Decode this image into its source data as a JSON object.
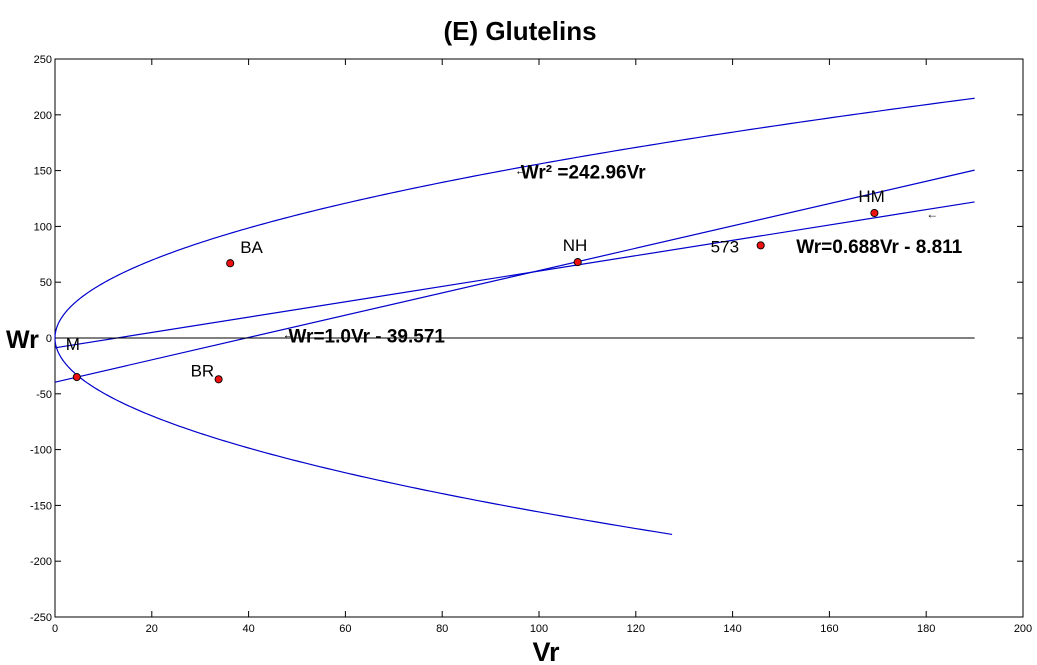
{
  "chart_data": {
    "type": "scatter",
    "title": "(E)   Glutelins",
    "xlabel": "Vr",
    "ylabel": "Wr",
    "xlim": [
      0,
      200
    ],
    "ylim": [
      -250,
      250
    ],
    "xticks": [
      "0",
      "20",
      "40",
      "60",
      "80",
      "100",
      "120",
      "140",
      "160",
      "180",
      "200"
    ],
    "yticks": [
      "250",
      "200",
      "150",
      "100",
      "50",
      "0",
      "-50",
      "-100",
      "-150",
      "-200",
      "-250"
    ],
    "grid": false,
    "points": [
      {
        "label": "BA",
        "x": 36.2,
        "y": 67
      },
      {
        "label": "BR",
        "x": 33.8,
        "y": -37
      },
      {
        "label": "M",
        "x": 4.5,
        "y": -35
      },
      {
        "label": "NH",
        "x": 108.0,
        "y": 68
      },
      {
        "label": "573",
        "x": 145.8,
        "y": 83
      },
      {
        "label": "HM",
        "x": 169.3,
        "y": 112
      }
    ],
    "lines": [
      {
        "label": "Wr² =242.96Vr",
        "kind": "parabola",
        "coef": 242.96,
        "upper_xmax": 190,
        "lower_xmax": 127.5
      },
      {
        "label": "Wr=1.0Vr - 39.571",
        "kind": "linear",
        "slope": 1.0,
        "intercept": -39.571,
        "xmin": 0,
        "xmax": 190
      },
      {
        "label": "Wr=0.688Vr - 8.811",
        "kind": "linear",
        "slope": 0.688,
        "intercept": -8.811,
        "xmin": 0,
        "xmax": 190
      },
      {
        "label": "",
        "kind": "horizontal",
        "y": 0,
        "xmin": 0,
        "xmax": 190
      }
    ],
    "annotations": [
      {
        "text": "Wr² =242.96Vr",
        "arrow": true,
        "x": 95,
        "y": 150
      },
      {
        "text": "Wr=1.0Vr - 39.571",
        "arrow": true,
        "x": 47,
        "y": 3
      },
      {
        "text": "Wr=0.688Vr - 8.811",
        "arrow": true,
        "x": 180,
        "y": 111
      }
    ],
    "colors": {
      "curve": "#0000cc",
      "point_fill": "#ee1111",
      "axis": "#000000"
    }
  }
}
